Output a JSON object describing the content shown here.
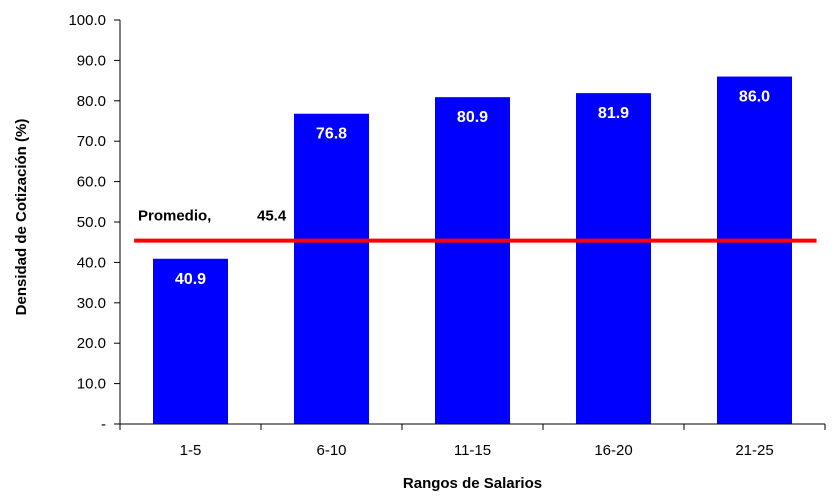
{
  "chart_data": {
    "type": "bar",
    "title": "",
    "xlabel": "Rangos de Salarios",
    "ylabel": "Densidad de Cotización (%)",
    "categories": [
      "1-5",
      "6-10",
      "11-15",
      "16-20",
      "21-25"
    ],
    "values": [
      40.9,
      76.8,
      80.9,
      81.9,
      86.0
    ],
    "data_labels": [
      "40.9",
      "76.8",
      "80.9",
      "81.9",
      "86.0"
    ],
    "ylim": [
      0,
      100
    ],
    "yticks": [
      0,
      10,
      20,
      30,
      40,
      50,
      60,
      70,
      80,
      90,
      100
    ],
    "ytick_labels": [
      "-",
      "10.0",
      "20.0",
      "30.0",
      "40.0",
      "50.0",
      "60.0",
      "70.0",
      "80.0",
      "90.0",
      "100.0"
    ],
    "grid": false,
    "bar_color": "#0000ff",
    "reference_line": {
      "value": 45.4,
      "label": "Promedio,",
      "value_label": "45.4",
      "color": "#ff0000"
    }
  }
}
